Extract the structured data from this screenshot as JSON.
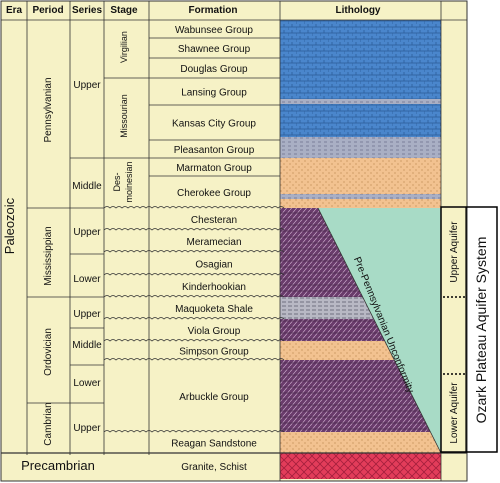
{
  "headers": {
    "era": "Era",
    "period": "Period",
    "series": "Series",
    "stage": "Stage",
    "formation": "Formation",
    "lithology": "Lithology"
  },
  "eras": {
    "paleozoic": "Paleozoic",
    "precambrian": "Precambrian"
  },
  "periods": {
    "pennsylvanian": "Pennsylvanian",
    "mississippian": "Mississippian",
    "ordovician": "Ordovician",
    "cambrian": "Cambrian"
  },
  "series": {
    "penn_upper": "Upper",
    "penn_middle": "Middle",
    "miss_upper": "Upper",
    "miss_lower": "Lower",
    "ord_upper": "Upper",
    "ord_middle": "Middle",
    "ord_lower": "Lower",
    "camb_upper": "Upper"
  },
  "stages": {
    "virgilian": "Virgilian",
    "missourian": "Missourian",
    "desmoinesian_1": "Des-",
    "desmoinesian_2": "moinesian"
  },
  "formations": [
    "Wabunsee Group",
    "Shawnee Group",
    "Douglas Group",
    "Lansing Group",
    "Kansas City Group",
    "Pleasanton Group",
    "Marmaton Group",
    "Cherokee Group",
    "Chesteran",
    "Meramecian",
    "Osagian",
    "Kinderhookian",
    "Maquoketa Shale",
    "Viola Group",
    "Simpson Group",
    "Arbuckle Group",
    "Reagan Sandstone",
    "Granite, Schist"
  ],
  "unconformity_label": "Pre-Pennsylvanian Unconformity",
  "aquifers": {
    "upper": "Upper Aquifer",
    "lower": "Lower Aquifer",
    "system": "Ozark Plateau Aquifer System"
  },
  "colors": {
    "table_bg": "#f6f2c6",
    "unconformity_fill": "#a8dbc6",
    "pennsylvanian_blue": "#4a86cc",
    "pennsylvanian_gray": "#a9afc4",
    "sandstone": "#f2c290",
    "dolomite_purple": "#6a3c6c",
    "shale_gray": "#b8b8c4",
    "granite": "#e33c5a"
  }
}
